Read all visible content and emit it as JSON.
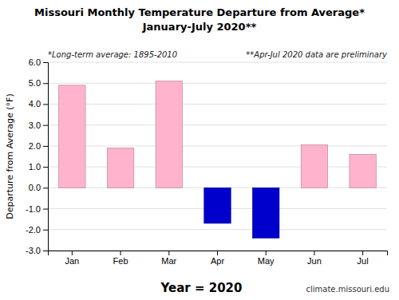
{
  "chart_data": {
    "type": "bar",
    "title": "Missouri Monthly Temperature Departure from Average*",
    "subtitle": "January-July 2020**",
    "xlabel": "Year = 2020",
    "ylabel": "Departure from Average (°F)",
    "annotations": [
      "*Long-term average: 1895-2010",
      "**Apr-Jul 2020 data are preliminary",
      "climate.missouri.edu"
    ],
    "categories": [
      "Jan",
      "Feb",
      "Mar",
      "Apr",
      "May",
      "Jun",
      "Jul"
    ],
    "values": [
      4.9,
      1.9,
      5.1,
      -1.7,
      -2.4,
      2.05,
      1.6
    ],
    "colors": [
      "#FFB3CC",
      "#FFB3CC",
      "#FFB3CC",
      "#0000CC",
      "#0000CC",
      "#FFB3CC",
      "#FFB3CC"
    ],
    "ylim": [
      -3.0,
      6.0
    ],
    "yticks": [
      {
        "value": -3.0,
        "label": "-3.0"
      },
      {
        "value": -2.0,
        "label": "-2.0"
      },
      {
        "value": -1.0,
        "label": "-1.0"
      },
      {
        "value": 0.0,
        "label": "0.0"
      },
      {
        "value": 1.0,
        "label": "1.0"
      },
      {
        "value": 2.0,
        "label": "2.0"
      },
      {
        "value": 3.0,
        "label": "3.0"
      },
      {
        "value": 4.0,
        "label": "4.0"
      },
      {
        "value": 5.0,
        "label": "5.0"
      },
      {
        "value": 6.0,
        "label": "6.0"
      }
    ],
    "grid": true
  }
}
